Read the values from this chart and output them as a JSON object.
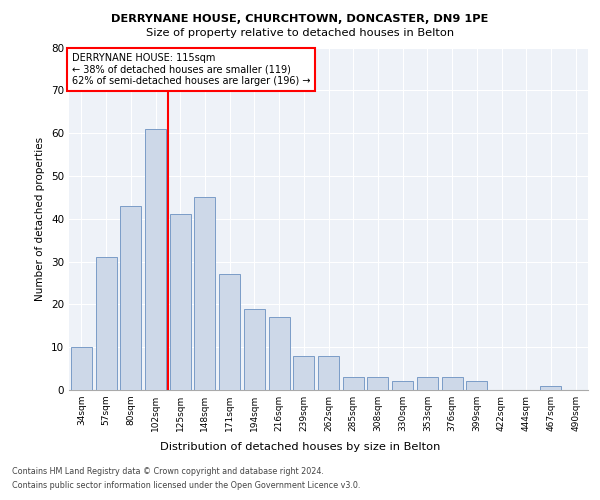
{
  "title1": "DERRYNANE HOUSE, CHURCHTOWN, DONCASTER, DN9 1PE",
  "title2": "Size of property relative to detached houses in Belton",
  "xlabel": "Distribution of detached houses by size in Belton",
  "ylabel": "Number of detached properties",
  "bar_labels": [
    "34sqm",
    "57sqm",
    "80sqm",
    "102sqm",
    "125sqm",
    "148sqm",
    "171sqm",
    "194sqm",
    "216sqm",
    "239sqm",
    "262sqm",
    "285sqm",
    "308sqm",
    "330sqm",
    "353sqm",
    "376sqm",
    "399sqm",
    "422sqm",
    "444sqm",
    "467sqm",
    "490sqm"
  ],
  "bar_values": [
    10,
    31,
    43,
    61,
    41,
    45,
    27,
    19,
    17,
    8,
    8,
    3,
    3,
    2,
    3,
    3,
    2,
    0,
    0,
    1,
    0
  ],
  "bar_color": "#cdd8e8",
  "bar_edge_color": "#7a9cc7",
  "annotation_line1": "DERRYNANE HOUSE: 115sqm",
  "annotation_line2": "← 38% of detached houses are smaller (119)",
  "annotation_line3": "62% of semi-detached houses are larger (196) →",
  "box_color": "white",
  "box_edge_color": "red",
  "vline_color": "red",
  "vline_pos": 3.5,
  "ylim": [
    0,
    80
  ],
  "yticks": [
    0,
    10,
    20,
    30,
    40,
    50,
    60,
    70,
    80
  ],
  "footer1": "Contains HM Land Registry data © Crown copyright and database right 2024.",
  "footer2": "Contains public sector information licensed under the Open Government Licence v3.0.",
  "bg_color": "#eef2f8",
  "grid_color": "white"
}
